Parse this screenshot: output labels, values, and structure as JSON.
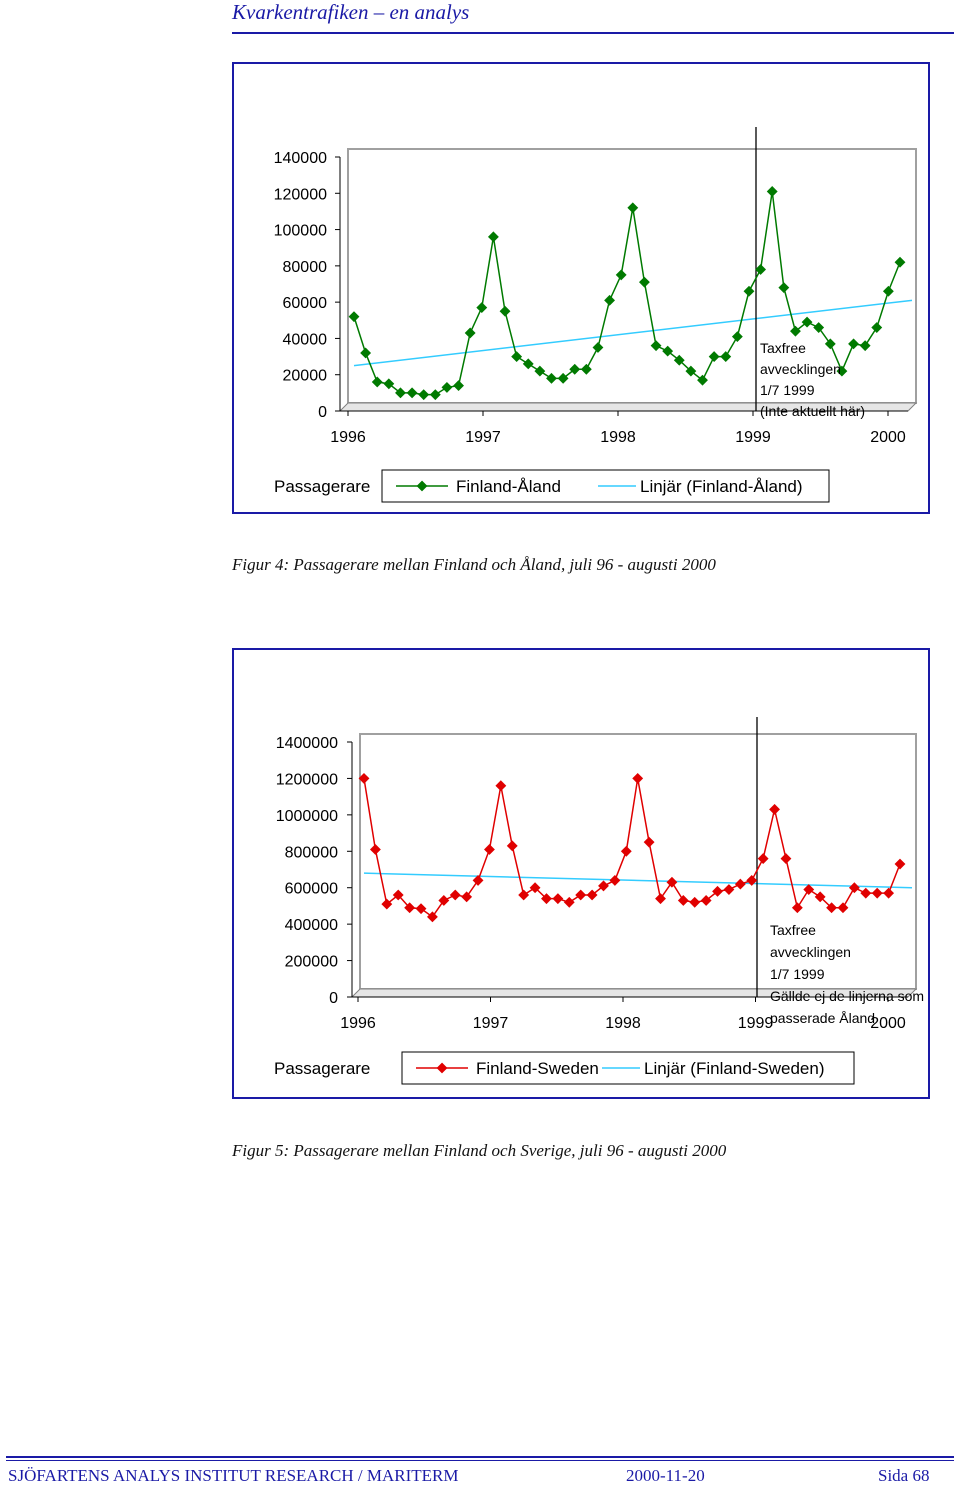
{
  "header": {
    "title": "Kvarkentrafiken – en analys"
  },
  "colors": {
    "accent": "#1a1aa6",
    "series1": "#007a00",
    "series2": "#e00000",
    "trend": "#33ccff",
    "plot_border": "#808080"
  },
  "figures": [
    {
      "caption": "Figur 4: Passagerare mellan Finland och Åland, juli 96 - augusti 2000",
      "ylabel": "Passagerare",
      "legend": {
        "series": "Finland-Åland",
        "trend": "Linjär (Finland-Åland)"
      },
      "annotation": [
        "Taxfree",
        "avvecklingen",
        "1/7 1999",
        "(Inte aktuellt här)"
      ]
    },
    {
      "caption": "Figur 5: Passagerare mellan Finland och Sverige, juli 96 - augusti 2000",
      "ylabel": "Passagerare",
      "legend": {
        "series": "Finland-Sweden",
        "trend": "Linjär (Finland-Sweden)"
      },
      "annotation": [
        "Taxfree",
        "avvecklingen",
        "1/7 1999",
        "Gällde ej de linjerna som",
        "passerade Åland"
      ]
    }
  ],
  "chart_data": [
    {
      "type": "line",
      "title": "",
      "xlabel": "",
      "ylabel": "Passagerare",
      "x_ticks": [
        "1996",
        "1997",
        "1998",
        "1999",
        "2000"
      ],
      "y_ticks": [
        "0",
        "20000",
        "40000",
        "60000",
        "80000",
        "100000",
        "120000",
        "140000"
      ],
      "ylim": [
        0,
        140000
      ],
      "grid": false,
      "legend_position": "bottom",
      "series": [
        {
          "name": "Finland-Åland",
          "color": "#007a00",
          "marker": "diamond",
          "values": [
            52000,
            32000,
            16000,
            15000,
            10000,
            10000,
            9000,
            9000,
            13000,
            14000,
            43000,
            57000,
            96000,
            55000,
            30000,
            26000,
            22000,
            18000,
            18000,
            23000,
            23000,
            35000,
            61000,
            75000,
            112000,
            71000,
            36000,
            33000,
            28000,
            22000,
            17000,
            30000,
            30000,
            41000,
            66000,
            78000,
            121000,
            68000,
            44000,
            49000,
            46000,
            37000,
            22000,
            37000,
            36000,
            46000,
            66000,
            82000
          ]
        },
        {
          "name": "Linjär (Finland-Åland)",
          "color": "#33ccff",
          "values": [
            25000,
            61000
          ]
        }
      ]
    },
    {
      "type": "line",
      "title": "",
      "xlabel": "",
      "ylabel": "Passagerare",
      "x_ticks": [
        "1996",
        "1997",
        "1998",
        "1999",
        "2000"
      ],
      "y_ticks": [
        "0",
        "200000",
        "400000",
        "600000",
        "800000",
        "1000000",
        "1200000",
        "1400000"
      ],
      "ylim": [
        0,
        1400000
      ],
      "grid": false,
      "legend_position": "bottom",
      "series": [
        {
          "name": "Finland-Sweden",
          "color": "#e00000",
          "marker": "diamond",
          "values": [
            1200000,
            810000,
            510000,
            560000,
            490000,
            485000,
            440000,
            530000,
            560000,
            550000,
            640000,
            810000,
            1160000,
            830000,
            560000,
            600000,
            540000,
            540000,
            520000,
            560000,
            560000,
            610000,
            640000,
            800000,
            1200000,
            850000,
            540000,
            630000,
            530000,
            520000,
            530000,
            580000,
            590000,
            620000,
            640000,
            760000,
            1030000,
            760000,
            490000,
            590000,
            550000,
            490000,
            490000,
            600000,
            570000,
            570000,
            570000,
            730000
          ]
        },
        {
          "name": "Linjär (Finland-Sweden)",
          "color": "#33ccff",
          "values": [
            680000,
            600000
          ]
        }
      ]
    }
  ],
  "footer": {
    "left": "SJÖFARTENS ANALYS INSTITUT RESEARCH / MARITERM",
    "date": "2000-11-20",
    "page": "Sida 68"
  }
}
